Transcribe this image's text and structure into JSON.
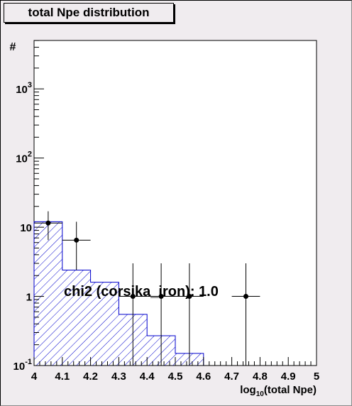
{
  "chart_data": {
    "type": "histogram",
    "title": "total Npe distribution",
    "xlabel": "log10(total Npe)",
    "ylabel": "#",
    "xlim": [
      4.0,
      5.0
    ],
    "ylim_log10": [
      -1,
      3.7
    ],
    "y_scale": "log",
    "x_ticks": [
      "4",
      "4.1",
      "4.2",
      "4.3",
      "4.4",
      "4.5",
      "4.6",
      "4.7",
      "4.8",
      "4.9",
      "5"
    ],
    "y_ticks": [
      {
        "value": 0.1,
        "base": "10",
        "exp": "-1"
      },
      {
        "value": 1,
        "base": "1",
        "exp": ""
      },
      {
        "value": 10,
        "base": "10",
        "exp": ""
      },
      {
        "value": 100,
        "base": "10",
        "exp": "2"
      },
      {
        "value": 1000,
        "base": "10",
        "exp": "3"
      }
    ],
    "histogram": {
      "bin_edges": [
        4.0,
        4.1,
        4.2,
        4.3,
        4.4,
        4.5,
        4.6
      ],
      "values": [
        12,
        2.4,
        1.6,
        0.55,
        0.27,
        0.15
      ],
      "color": "#0000cc",
      "fill": "hatched"
    },
    "points": [
      {
        "x": 4.05,
        "y": 11.5,
        "xerr": 0.05,
        "ylo": 6.5,
        "yhi": 17
      },
      {
        "x": 4.15,
        "y": 6.5,
        "xerr": 0.05,
        "ylo": 2.4,
        "yhi": 12
      },
      {
        "x": 4.35,
        "y": 1.0,
        "xerr": 0.05,
        "ylo": 0.1,
        "yhi": 3
      },
      {
        "x": 4.45,
        "y": 1.0,
        "xerr": 0.05,
        "ylo": 0.1,
        "yhi": 3
      },
      {
        "x": 4.55,
        "y": 1.0,
        "xerr": 0.05,
        "ylo": 0.1,
        "yhi": 3
      },
      {
        "x": 4.75,
        "y": 1.0,
        "xerr": 0.05,
        "ylo": 0.1,
        "yhi": 3
      }
    ],
    "annotation": "chi2 (corsika_iron): 1.0"
  }
}
